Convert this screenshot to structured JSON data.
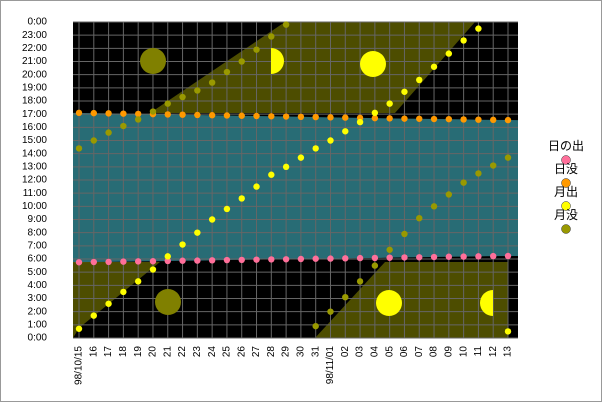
{
  "chart_data": {
    "type": "scatter",
    "categories": [
      "98/10/15",
      "16",
      "17",
      "18",
      "19",
      "20",
      "21",
      "22",
      "23",
      "24",
      "25",
      "26",
      "27",
      "28",
      "29",
      "30",
      "31",
      "98/11/01",
      "02",
      "03",
      "04",
      "05",
      "06",
      "07",
      "08",
      "09",
      "10",
      "11",
      "12",
      "13"
    ],
    "ylim": [
      0,
      24
    ],
    "yticks": [
      {
        "value": 0,
        "label": "0:00"
      },
      {
        "value": 1,
        "label": "1:00"
      },
      {
        "value": 2,
        "label": "2:00"
      },
      {
        "value": 3,
        "label": "3:00"
      },
      {
        "value": 4,
        "label": "4:00"
      },
      {
        "value": 5,
        "label": "5:00"
      },
      {
        "value": 6,
        "label": "6:00"
      },
      {
        "value": 7,
        "label": "7:00"
      },
      {
        "value": 8,
        "label": "8:00"
      },
      {
        "value": 9,
        "label": "9:00"
      },
      {
        "value": 10,
        "label": "10:00"
      },
      {
        "value": 11,
        "label": "11:00"
      },
      {
        "value": 12,
        "label": "12:00"
      },
      {
        "value": 13,
        "label": "13:00"
      },
      {
        "value": 14,
        "label": "14:00"
      },
      {
        "value": 15,
        "label": "15:00"
      },
      {
        "value": 16,
        "label": "16:00"
      },
      {
        "value": 17,
        "label": "17:00"
      },
      {
        "value": 18,
        "label": "18:00"
      },
      {
        "value": 19,
        "label": "19:00"
      },
      {
        "value": 20,
        "label": "20:00"
      },
      {
        "value": 21,
        "label": "21:00"
      },
      {
        "value": 22,
        "label": "22:00"
      },
      {
        "value": 23,
        "label": "23:00"
      },
      {
        "value": 24,
        "label": "0:00"
      }
    ],
    "grid": true,
    "legend_position": "right",
    "series": [
      {
        "name": "日の出",
        "color": "#ff6f9a",
        "values": [
          5.75,
          5.77,
          5.78,
          5.8,
          5.82,
          5.83,
          5.85,
          5.87,
          5.88,
          5.9,
          5.92,
          5.93,
          5.95,
          5.97,
          5.98,
          6.0,
          6.02,
          6.03,
          6.05,
          6.07,
          6.08,
          6.1,
          6.12,
          6.13,
          6.15,
          6.17,
          6.18,
          6.2,
          6.22,
          6.23
        ]
      },
      {
        "name": "日没",
        "color": "#ff9900",
        "values": [
          17.1,
          17.08,
          17.06,
          17.04,
          17.02,
          17.0,
          16.98,
          16.96,
          16.94,
          16.92,
          16.9,
          16.88,
          16.86,
          16.84,
          16.82,
          16.8,
          16.78,
          16.76,
          16.74,
          16.72,
          16.7,
          16.68,
          16.66,
          16.65,
          16.63,
          16.62,
          16.6,
          16.58,
          16.57,
          16.55
        ]
      },
      {
        "name": "月出",
        "color": "#ffff00",
        "values": [
          0.7,
          1.7,
          2.6,
          3.5,
          4.3,
          5.2,
          6.2,
          7.1,
          8.0,
          9.0,
          9.8,
          10.6,
          11.5,
          12.4,
          13.0,
          13.7,
          14.4,
          15.0,
          15.7,
          16.4,
          17.1,
          17.8,
          18.7,
          19.6,
          20.6,
          21.6,
          22.6,
          23.5,
          null,
          0.5
        ]
      },
      {
        "name": "月没",
        "color": "#999900",
        "values": [
          14.4,
          15.0,
          15.6,
          16.1,
          16.6,
          17.2,
          17.8,
          18.3,
          18.8,
          19.4,
          20.2,
          21.0,
          21.9,
          22.9,
          23.8,
          null,
          0.9,
          2.0,
          3.1,
          4.3,
          5.5,
          6.7,
          7.9,
          9.1,
          10.0,
          10.9,
          11.8,
          12.5,
          13.1,
          13.7
        ]
      }
    ]
  }
}
